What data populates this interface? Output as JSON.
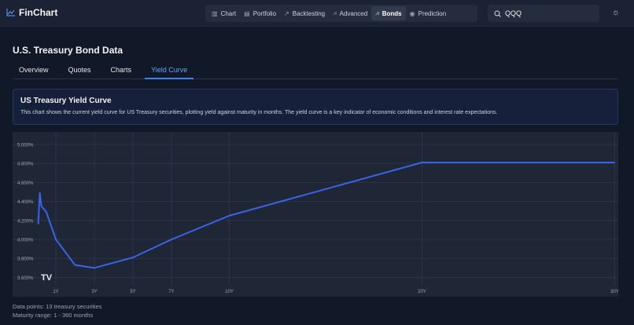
{
  "header": {
    "app_name": "FinChart",
    "nav": [
      {
        "label": "Chart",
        "icon": "bar-chart-icon"
      },
      {
        "label": "Portfolio",
        "icon": "briefcase-icon"
      },
      {
        "label": "Backtesting",
        "icon": "trend-icon"
      },
      {
        "label": "Advanced",
        "icon": "line-chart-icon"
      },
      {
        "label": "Bonds",
        "icon": "line-chart-icon",
        "active": true
      },
      {
        "label": "Prediction",
        "icon": "target-icon"
      }
    ],
    "search_value": "QQQ"
  },
  "page": {
    "title": "U.S. Treasury Bond Data",
    "tabs": [
      "Overview",
      "Quotes",
      "Charts",
      "Yield Curve"
    ],
    "active_tab": "Yield Curve"
  },
  "info": {
    "title": "US Treasury Yield Curve",
    "description": "This chart shows the current yield curve for US Treasury securities, plotting yield against maturity in months. The yield curve is a key indicator of economic conditions and interest rate expectations."
  },
  "chart_data": {
    "type": "line",
    "x_unit": "months",
    "x": [
      1,
      2,
      3,
      4,
      6,
      12,
      24,
      36,
      60,
      84,
      120,
      240,
      360
    ],
    "y": [
      4.16,
      4.49,
      4.35,
      4.33,
      4.29,
      4.0,
      3.73,
      3.7,
      3.81,
      4.0,
      4.25,
      4.81,
      4.81
    ],
    "x_ticks": [
      {
        "m": 12,
        "label": "1Y"
      },
      {
        "m": 36,
        "label": "3Y"
      },
      {
        "m": 60,
        "label": "5Y"
      },
      {
        "m": 84,
        "label": "7Y"
      },
      {
        "m": 120,
        "label": "10Y"
      },
      {
        "m": 240,
        "label": "20Y"
      },
      {
        "m": 360,
        "label": "30Y"
      }
    ],
    "y_ticks": [
      "5.000%",
      "4.800%",
      "4.600%",
      "4.400%",
      "4.200%",
      "4.000%",
      "3.800%",
      "3.600%"
    ],
    "y_tick_values": [
      5.0,
      4.8,
      4.6,
      4.4,
      4.2,
      4.0,
      3.8,
      3.6
    ],
    "line_color": "#3b63e8",
    "grid": true,
    "watermark": "TV"
  },
  "footer": {
    "points": "Data points: 13 treasury securities",
    "range": "Maturity range: 1 - 360 months"
  }
}
